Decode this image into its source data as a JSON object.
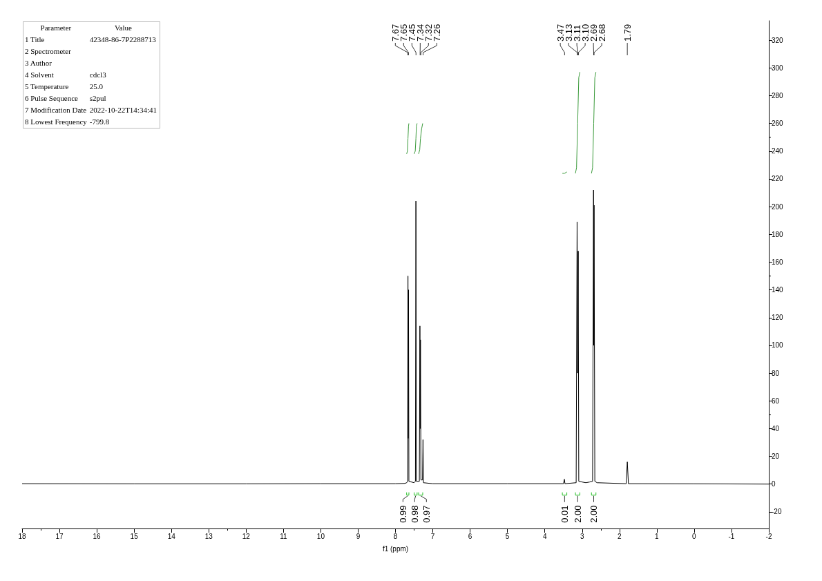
{
  "chart_data": [
    {
      "type": "other",
      "annotations": [
        "Parameter",
        "Value",
        "1 Title",
        "42348-86-7P2288713",
        "2 Spectrometer",
        null,
        "3 Author",
        null,
        "4 Solvent",
        "cdcl3",
        "5 Temperature",
        "25.0",
        "6 Pulse Sequence",
        "s2pul",
        "7 Modification Date",
        "2022-10-22T14:34:41",
        "8 Lowest Frequency",
        "-799.8"
      ]
    },
    {
      "type": "line",
      "xlabel": "f1 (ppm)",
      "xlim": [
        18,
        -2
      ],
      "xticks": [
        18,
        17,
        16,
        15,
        14,
        13,
        12,
        11,
        10,
        9,
        8,
        7,
        6,
        5,
        4,
        3,
        2,
        1,
        0,
        -1,
        -2
      ],
      "ylim": [
        -32,
        334
      ],
      "yticks": [
        -20,
        0,
        20,
        40,
        60,
        80,
        100,
        120,
        140,
        160,
        180,
        200,
        220,
        240,
        260,
        280,
        300,
        320
      ],
      "series": [
        {
          "color": "#000000",
          "x": [
            18,
            15,
            12,
            10,
            8,
            7.75,
            7.7,
            7.675,
            7.665,
            7.658,
            7.65,
            7.64,
            7.5,
            7.465,
            7.452,
            7.44,
            7.36,
            7.345,
            7.338,
            7.33,
            7.318,
            7.275,
            7.262,
            7.25,
            7,
            5,
            3.5,
            3.475,
            3.46,
            3.16,
            3.135,
            3.12,
            3.105,
            3.09,
            3,
            2.9,
            2.8,
            2.72,
            2.695,
            2.687,
            2.68,
            2.66,
            2.6,
            1.82,
            1.79,
            1.76,
            0,
            -2
          ],
          "values": [
            0.3,
            0.2,
            0.2,
            0.3,
            0.3,
            0.5,
            1,
            2,
            150,
            33,
            140,
            2,
            1,
            2,
            204,
            2,
            2,
            114,
            40,
            104,
            3,
            3,
            32,
            1,
            0.3,
            0.3,
            0.3,
            3.5,
            0.3,
            1,
            189,
            80,
            168,
            2,
            1.5,
            1,
            1.5,
            2,
            212,
            100,
            201,
            2,
            1,
            0.3,
            16,
            0.3,
            0.2,
            0
          ]
        },
        {
          "color": "#3a9a3a",
          "x": [
            7.7,
            7.68,
            7.665,
            7.65,
            7.64
          ],
          "values": [
            238,
            240,
            249,
            258,
            260
          ]
        },
        {
          "color": "#3a9a3a",
          "x": [
            7.5,
            7.47,
            7.452,
            7.44,
            7.42
          ],
          "values": [
            238,
            240,
            249,
            258,
            260
          ]
        },
        {
          "color": "#3a9a3a",
          "x": [
            7.38,
            7.35,
            7.33,
            7.3,
            7.27
          ],
          "values": [
            238,
            241,
            249,
            256,
            260
          ]
        },
        {
          "color": "#3a9a3a",
          "x": [
            3.18,
            3.15,
            3.12,
            3.09,
            3.06
          ],
          "values": [
            224,
            228,
            260,
            293,
            297
          ]
        },
        {
          "color": "#3a9a3a",
          "x": [
            2.75,
            2.72,
            2.69,
            2.66,
            2.63
          ],
          "values": [
            224,
            228,
            260,
            293,
            297
          ]
        },
        {
          "color": "#3a9a3a",
          "x": [
            3.53,
            3.47,
            3.41
          ],
          "values": [
            224,
            224,
            225
          ]
        }
      ],
      "annotations": [
        {
          "text": "7.67",
          "x": 7.67
        },
        {
          "text": "7.65",
          "x": 7.65
        },
        {
          "text": "7.45",
          "x": 7.45
        },
        {
          "text": "7.34",
          "x": 7.34
        },
        {
          "text": "7.32",
          "x": 7.32
        },
        {
          "text": "7.26",
          "x": 7.26
        },
        {
          "text": "3.47",
          "x": 3.47
        },
        {
          "text": "3.13",
          "x": 3.13
        },
        {
          "text": "3.11",
          "x": 3.11
        },
        {
          "text": "3.10",
          "x": 3.1
        },
        {
          "text": "2.69",
          "x": 2.69
        },
        {
          "text": "2.68",
          "x": 2.68
        },
        {
          "text": "1.79",
          "x": 1.79
        },
        "0.99",
        "0.98",
        "0.97",
        "0.01",
        "2.00",
        "2.00"
      ]
    }
  ]
}
